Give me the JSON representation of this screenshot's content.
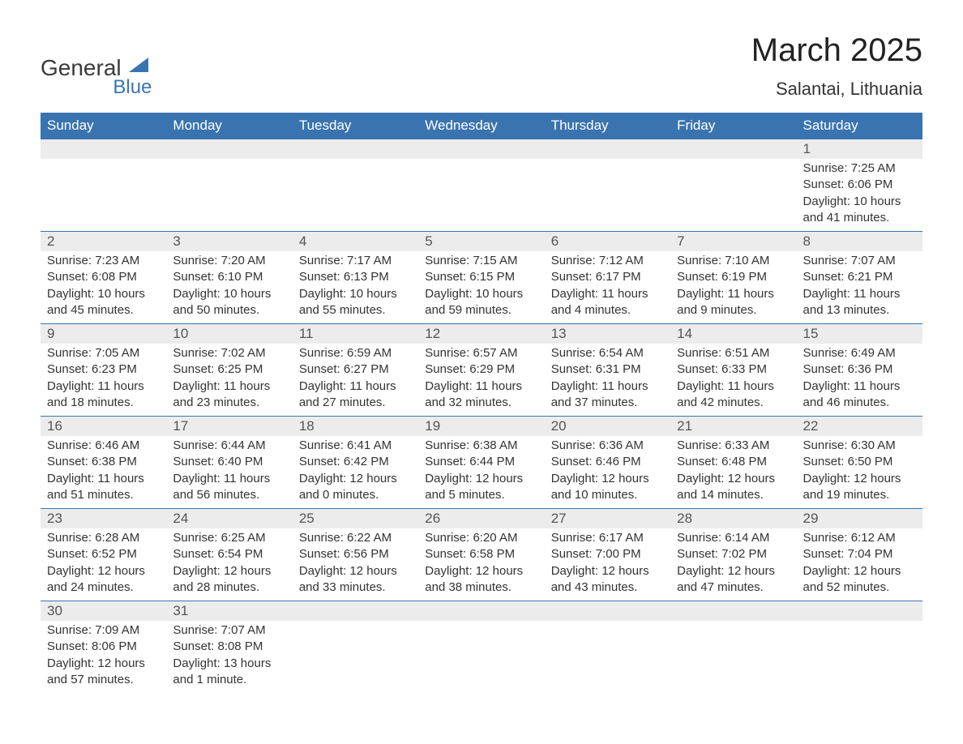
{
  "brand": {
    "word1": "General",
    "word2": "Blue",
    "word1_color": "#3a3a3a",
    "word2_color": "#3a74b0",
    "sail_color": "#3a74b0"
  },
  "title": "March 2025",
  "subtitle": "Salantai, Lithuania",
  "colors": {
    "header_bg": "#3a74b0",
    "header_text": "#ffffff",
    "daynum_bg": "#ececec",
    "daynum_text": "#555555",
    "body_text": "#333333",
    "row_border": "#3a74b0",
    "page_bg": "#ffffff"
  },
  "typography": {
    "title_fontsize": 40,
    "subtitle_fontsize": 22,
    "header_fontsize": 17,
    "daynum_fontsize": 17,
    "cell_fontsize": 15,
    "font_family": "Arial, Helvetica, sans-serif"
  },
  "week_headers": [
    "Sunday",
    "Monday",
    "Tuesday",
    "Wednesday",
    "Thursday",
    "Friday",
    "Saturday"
  ],
  "weeks": [
    [
      null,
      null,
      null,
      null,
      null,
      null,
      {
        "n": "1",
        "sr": "Sunrise: 7:25 AM",
        "ss": "Sunset: 6:06 PM",
        "d1": "Daylight: 10 hours",
        "d2": "and 41 minutes."
      }
    ],
    [
      {
        "n": "2",
        "sr": "Sunrise: 7:23 AM",
        "ss": "Sunset: 6:08 PM",
        "d1": "Daylight: 10 hours",
        "d2": "and 45 minutes."
      },
      {
        "n": "3",
        "sr": "Sunrise: 7:20 AM",
        "ss": "Sunset: 6:10 PM",
        "d1": "Daylight: 10 hours",
        "d2": "and 50 minutes."
      },
      {
        "n": "4",
        "sr": "Sunrise: 7:17 AM",
        "ss": "Sunset: 6:13 PM",
        "d1": "Daylight: 10 hours",
        "d2": "and 55 minutes."
      },
      {
        "n": "5",
        "sr": "Sunrise: 7:15 AM",
        "ss": "Sunset: 6:15 PM",
        "d1": "Daylight: 10 hours",
        "d2": "and 59 minutes."
      },
      {
        "n": "6",
        "sr": "Sunrise: 7:12 AM",
        "ss": "Sunset: 6:17 PM",
        "d1": "Daylight: 11 hours",
        "d2": "and 4 minutes."
      },
      {
        "n": "7",
        "sr": "Sunrise: 7:10 AM",
        "ss": "Sunset: 6:19 PM",
        "d1": "Daylight: 11 hours",
        "d2": "and 9 minutes."
      },
      {
        "n": "8",
        "sr": "Sunrise: 7:07 AM",
        "ss": "Sunset: 6:21 PM",
        "d1": "Daylight: 11 hours",
        "d2": "and 13 minutes."
      }
    ],
    [
      {
        "n": "9",
        "sr": "Sunrise: 7:05 AM",
        "ss": "Sunset: 6:23 PM",
        "d1": "Daylight: 11 hours",
        "d2": "and 18 minutes."
      },
      {
        "n": "10",
        "sr": "Sunrise: 7:02 AM",
        "ss": "Sunset: 6:25 PM",
        "d1": "Daylight: 11 hours",
        "d2": "and 23 minutes."
      },
      {
        "n": "11",
        "sr": "Sunrise: 6:59 AM",
        "ss": "Sunset: 6:27 PM",
        "d1": "Daylight: 11 hours",
        "d2": "and 27 minutes."
      },
      {
        "n": "12",
        "sr": "Sunrise: 6:57 AM",
        "ss": "Sunset: 6:29 PM",
        "d1": "Daylight: 11 hours",
        "d2": "and 32 minutes."
      },
      {
        "n": "13",
        "sr": "Sunrise: 6:54 AM",
        "ss": "Sunset: 6:31 PM",
        "d1": "Daylight: 11 hours",
        "d2": "and 37 minutes."
      },
      {
        "n": "14",
        "sr": "Sunrise: 6:51 AM",
        "ss": "Sunset: 6:33 PM",
        "d1": "Daylight: 11 hours",
        "d2": "and 42 minutes."
      },
      {
        "n": "15",
        "sr": "Sunrise: 6:49 AM",
        "ss": "Sunset: 6:36 PM",
        "d1": "Daylight: 11 hours",
        "d2": "and 46 minutes."
      }
    ],
    [
      {
        "n": "16",
        "sr": "Sunrise: 6:46 AM",
        "ss": "Sunset: 6:38 PM",
        "d1": "Daylight: 11 hours",
        "d2": "and 51 minutes."
      },
      {
        "n": "17",
        "sr": "Sunrise: 6:44 AM",
        "ss": "Sunset: 6:40 PM",
        "d1": "Daylight: 11 hours",
        "d2": "and 56 minutes."
      },
      {
        "n": "18",
        "sr": "Sunrise: 6:41 AM",
        "ss": "Sunset: 6:42 PM",
        "d1": "Daylight: 12 hours",
        "d2": "and 0 minutes."
      },
      {
        "n": "19",
        "sr": "Sunrise: 6:38 AM",
        "ss": "Sunset: 6:44 PM",
        "d1": "Daylight: 12 hours",
        "d2": "and 5 minutes."
      },
      {
        "n": "20",
        "sr": "Sunrise: 6:36 AM",
        "ss": "Sunset: 6:46 PM",
        "d1": "Daylight: 12 hours",
        "d2": "and 10 minutes."
      },
      {
        "n": "21",
        "sr": "Sunrise: 6:33 AM",
        "ss": "Sunset: 6:48 PM",
        "d1": "Daylight: 12 hours",
        "d2": "and 14 minutes."
      },
      {
        "n": "22",
        "sr": "Sunrise: 6:30 AM",
        "ss": "Sunset: 6:50 PM",
        "d1": "Daylight: 12 hours",
        "d2": "and 19 minutes."
      }
    ],
    [
      {
        "n": "23",
        "sr": "Sunrise: 6:28 AM",
        "ss": "Sunset: 6:52 PM",
        "d1": "Daylight: 12 hours",
        "d2": "and 24 minutes."
      },
      {
        "n": "24",
        "sr": "Sunrise: 6:25 AM",
        "ss": "Sunset: 6:54 PM",
        "d1": "Daylight: 12 hours",
        "d2": "and 28 minutes."
      },
      {
        "n": "25",
        "sr": "Sunrise: 6:22 AM",
        "ss": "Sunset: 6:56 PM",
        "d1": "Daylight: 12 hours",
        "d2": "and 33 minutes."
      },
      {
        "n": "26",
        "sr": "Sunrise: 6:20 AM",
        "ss": "Sunset: 6:58 PM",
        "d1": "Daylight: 12 hours",
        "d2": "and 38 minutes."
      },
      {
        "n": "27",
        "sr": "Sunrise: 6:17 AM",
        "ss": "Sunset: 7:00 PM",
        "d1": "Daylight: 12 hours",
        "d2": "and 43 minutes."
      },
      {
        "n": "28",
        "sr": "Sunrise: 6:14 AM",
        "ss": "Sunset: 7:02 PM",
        "d1": "Daylight: 12 hours",
        "d2": "and 47 minutes."
      },
      {
        "n": "29",
        "sr": "Sunrise: 6:12 AM",
        "ss": "Sunset: 7:04 PM",
        "d1": "Daylight: 12 hours",
        "d2": "and 52 minutes."
      }
    ],
    [
      {
        "n": "30",
        "sr": "Sunrise: 7:09 AM",
        "ss": "Sunset: 8:06 PM",
        "d1": "Daylight: 12 hours",
        "d2": "and 57 minutes."
      },
      {
        "n": "31",
        "sr": "Sunrise: 7:07 AM",
        "ss": "Sunset: 8:08 PM",
        "d1": "Daylight: 13 hours",
        "d2": "and 1 minute."
      },
      null,
      null,
      null,
      null,
      null
    ]
  ]
}
